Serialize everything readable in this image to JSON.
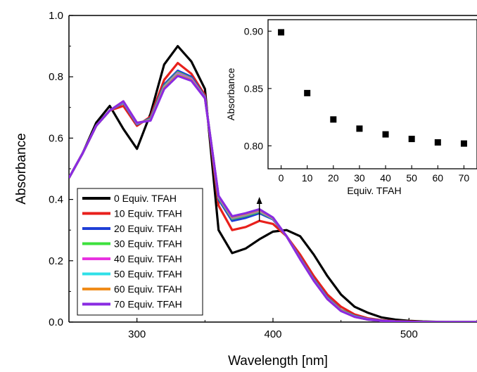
{
  "chart_data": [
    {
      "type": "line",
      "title": "",
      "xlabel": "Wavelength [nm]",
      "ylabel": "Absorbance",
      "xlim": [
        250,
        550
      ],
      "ylim": [
        0.0,
        1.0
      ],
      "x_ticks": [
        300,
        400,
        500
      ],
      "y_ticks": [
        0.0,
        0.2,
        0.4,
        0.6,
        0.8,
        1.0
      ],
      "y_tick_labels": [
        "0.0",
        "0.2",
        "0.4",
        "0.6",
        "0.8",
        "1.0"
      ],
      "legend_position": "bottom-left",
      "annotation": "upward arrow at 390 nm",
      "x": [
        250,
        260,
        270,
        280,
        290,
        300,
        310,
        320,
        330,
        340,
        350,
        360,
        370,
        380,
        390,
        400,
        410,
        420,
        430,
        440,
        450,
        460,
        470,
        480,
        490,
        500,
        510,
        520,
        530,
        540,
        550
      ],
      "series": [
        {
          "name": "0 Equiv. TFAH",
          "color": "#000000",
          "values": [
            0.47,
            0.55,
            0.65,
            0.705,
            0.63,
            0.565,
            0.68,
            0.84,
            0.9,
            0.85,
            0.76,
            0.3,
            0.225,
            0.24,
            0.27,
            0.295,
            0.3,
            0.28,
            0.22,
            0.15,
            0.09,
            0.05,
            0.03,
            0.015,
            0.008,
            0.004,
            0.002,
            0.001,
            0.0,
            0.0,
            0.0
          ]
        },
        {
          "name": "10 Equiv. TFAH",
          "color": "#e8201c",
          "values": [
            0.47,
            0.55,
            0.64,
            0.69,
            0.705,
            0.64,
            0.67,
            0.79,
            0.845,
            0.81,
            0.74,
            0.38,
            0.3,
            0.31,
            0.33,
            0.32,
            0.28,
            0.22,
            0.15,
            0.09,
            0.05,
            0.025,
            0.012,
            0.006,
            0.003,
            0.002,
            0.001,
            0.0,
            0.0,
            0.0,
            0.0
          ]
        },
        {
          "name": "20 Equiv. TFAH",
          "color": "#1f3fd6",
          "values": [
            0.47,
            0.55,
            0.64,
            0.69,
            0.715,
            0.645,
            0.665,
            0.775,
            0.82,
            0.8,
            0.735,
            0.4,
            0.33,
            0.34,
            0.355,
            0.335,
            0.28,
            0.21,
            0.14,
            0.08,
            0.04,
            0.02,
            0.01,
            0.005,
            0.002,
            0.001,
            0.0,
            0.0,
            0.0,
            0.0,
            0.0
          ]
        },
        {
          "name": "30 Equiv. TFAH",
          "color": "#3de03d",
          "values": [
            0.47,
            0.55,
            0.64,
            0.69,
            0.717,
            0.647,
            0.662,
            0.77,
            0.815,
            0.795,
            0.733,
            0.405,
            0.337,
            0.347,
            0.36,
            0.337,
            0.28,
            0.208,
            0.138,
            0.078,
            0.039,
            0.019,
            0.009,
            0.004,
            0.002,
            0.001,
            0.0,
            0.0,
            0.0,
            0.0,
            0.0
          ]
        },
        {
          "name": "40 Equiv. TFAH",
          "color": "#e832e0",
          "values": [
            0.47,
            0.55,
            0.64,
            0.69,
            0.718,
            0.648,
            0.66,
            0.767,
            0.812,
            0.793,
            0.732,
            0.408,
            0.34,
            0.35,
            0.363,
            0.338,
            0.28,
            0.207,
            0.137,
            0.077,
            0.038,
            0.018,
            0.009,
            0.004,
            0.002,
            0.001,
            0.0,
            0.0,
            0.0,
            0.0,
            0.0
          ]
        },
        {
          "name": "50 Equiv. TFAH",
          "color": "#2fe0e8",
          "values": [
            0.47,
            0.55,
            0.64,
            0.69,
            0.719,
            0.649,
            0.659,
            0.765,
            0.808,
            0.79,
            0.731,
            0.41,
            0.342,
            0.352,
            0.365,
            0.339,
            0.28,
            0.206,
            0.136,
            0.076,
            0.037,
            0.018,
            0.008,
            0.004,
            0.002,
            0.001,
            0.0,
            0.0,
            0.0,
            0.0,
            0.0
          ]
        },
        {
          "name": "60 Equiv. TFAH",
          "color": "#f08c1a",
          "values": [
            0.47,
            0.55,
            0.64,
            0.69,
            0.72,
            0.65,
            0.658,
            0.763,
            0.806,
            0.789,
            0.73,
            0.411,
            0.343,
            0.353,
            0.366,
            0.34,
            0.28,
            0.206,
            0.135,
            0.075,
            0.037,
            0.017,
            0.008,
            0.004,
            0.002,
            0.001,
            0.0,
            0.0,
            0.0,
            0.0,
            0.0
          ]
        },
        {
          "name": "70 Equiv. TFAH",
          "color": "#8a2be2",
          "values": [
            0.47,
            0.55,
            0.64,
            0.69,
            0.72,
            0.65,
            0.657,
            0.76,
            0.803,
            0.787,
            0.73,
            0.412,
            0.345,
            0.355,
            0.368,
            0.341,
            0.28,
            0.205,
            0.135,
            0.075,
            0.036,
            0.017,
            0.008,
            0.004,
            0.002,
            0.001,
            0.0,
            0.0,
            0.0,
            0.0,
            0.0
          ]
        }
      ]
    },
    {
      "type": "scatter",
      "title": "",
      "xlabel": "Equiv. TFAH",
      "ylabel": "Absorbance",
      "xlim": [
        -5,
        75
      ],
      "ylim": [
        0.78,
        0.91
      ],
      "x_ticks": [
        0,
        10,
        20,
        30,
        40,
        50,
        60,
        70
      ],
      "y_ticks": [
        0.8,
        0.85,
        0.9
      ],
      "y_tick_labels": [
        "0.80",
        "0.85",
        "0.90"
      ],
      "x": [
        0,
        10,
        20,
        30,
        40,
        50,
        60,
        70
      ],
      "values": [
        0.899,
        0.846,
        0.823,
        0.815,
        0.81,
        0.806,
        0.803,
        0.802
      ],
      "marker_color": "#000000"
    }
  ]
}
